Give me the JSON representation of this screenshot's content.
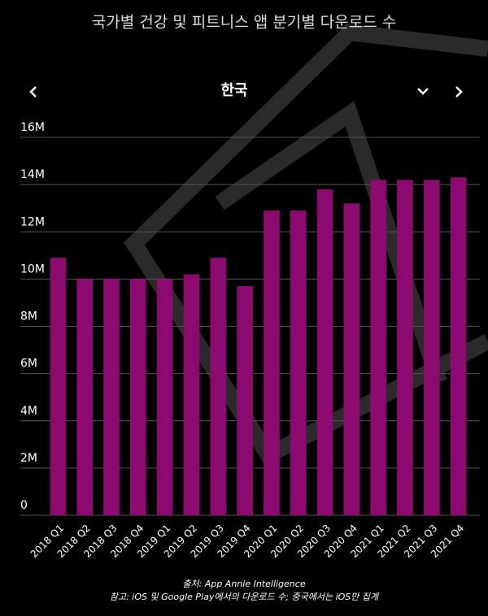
{
  "chart_data": {
    "type": "bar",
    "title": "국가별 건강 및 피트니스 앱 분기별 다운로드 수",
    "subtitle": "한국",
    "source": "출처: App Annie Intelligence",
    "note": "참고: iOS 및 Google Play에서의 다운로드 수; 중국에서는 iOS만 집계",
    "categories": [
      "2018 Q1",
      "2018 Q2",
      "2018 Q3",
      "2018 Q4",
      "2019 Q1",
      "2019 Q2",
      "2019 Q3",
      "2019 Q4",
      "2020 Q1",
      "2020 Q2",
      "2020 Q3",
      "2020 Q4",
      "2021 Q1",
      "2021 Q2",
      "2021 Q3",
      "2021 Q4"
    ],
    "values": [
      10900000,
      10000000,
      10000000,
      10000000,
      10000000,
      10200000,
      10900000,
      9700000,
      12900000,
      12900000,
      13800000,
      13200000,
      14200000,
      14200000,
      14200000,
      14300000
    ],
    "color": "#8c0a70",
    "ylim": [
      0,
      16000000
    ],
    "yticks": [
      0,
      {
        "value": 2000000,
        "label": "2M"
      },
      {
        "value": 4000000,
        "label": "4M"
      },
      {
        "value": 6000000,
        "label": "6M"
      },
      {
        "value": 8000000,
        "label": "8M"
      },
      {
        "value": 10000000,
        "label": "10M"
      },
      {
        "value": 12000000,
        "label": "12M"
      },
      {
        "value": 14000000,
        "label": "14M"
      },
      {
        "value": 16000000,
        "label": "16M"
      }
    ],
    "grid": true
  }
}
